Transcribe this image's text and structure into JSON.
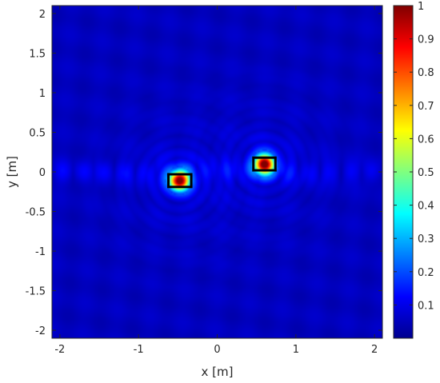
{
  "chart_data": {
    "type": "heatmap",
    "title": "",
    "xlabel": "x [m]",
    "ylabel": "y [m]",
    "xlim": [
      -2.1,
      2.1
    ],
    "ylim": [
      -2.1,
      2.1
    ],
    "x_ticks": [
      -2,
      -1,
      0,
      1,
      2
    ],
    "x_tick_labels": [
      "-2",
      "-1",
      "0",
      "1",
      "2"
    ],
    "y_ticks": [
      -2,
      -1.5,
      -1,
      -0.5,
      0,
      0.5,
      1,
      1.5,
      2
    ],
    "y_tick_labels": [
      "-2",
      "-1.5",
      "-1",
      "-0.5",
      "0",
      "0.5",
      "1",
      "1.5",
      "2"
    ],
    "colorbar": {
      "colormap": "jet",
      "range": [
        0,
        1
      ],
      "ticks": [
        0.1,
        0.2,
        0.3,
        0.4,
        0.5,
        0.6,
        0.7,
        0.8,
        0.9,
        1
      ],
      "tick_labels": [
        "0.1",
        "0.2",
        "0.3",
        "0.4",
        "0.5",
        "0.6",
        "0.7",
        "0.8",
        "0.9",
        "1"
      ]
    },
    "background_level": 0.06,
    "peaks": [
      {
        "x": -0.48,
        "y": -0.11,
        "value": 1.0
      },
      {
        "x": 0.6,
        "y": 0.1,
        "value": 1.0
      }
    ],
    "target_boxes": [
      {
        "x0": -0.62,
        "x1": -0.33,
        "y0": -0.19,
        "y1": -0.03
      },
      {
        "x0": 0.46,
        "x1": 0.74,
        "y0": 0.02,
        "y1": 0.18
      }
    ],
    "grid": false
  }
}
